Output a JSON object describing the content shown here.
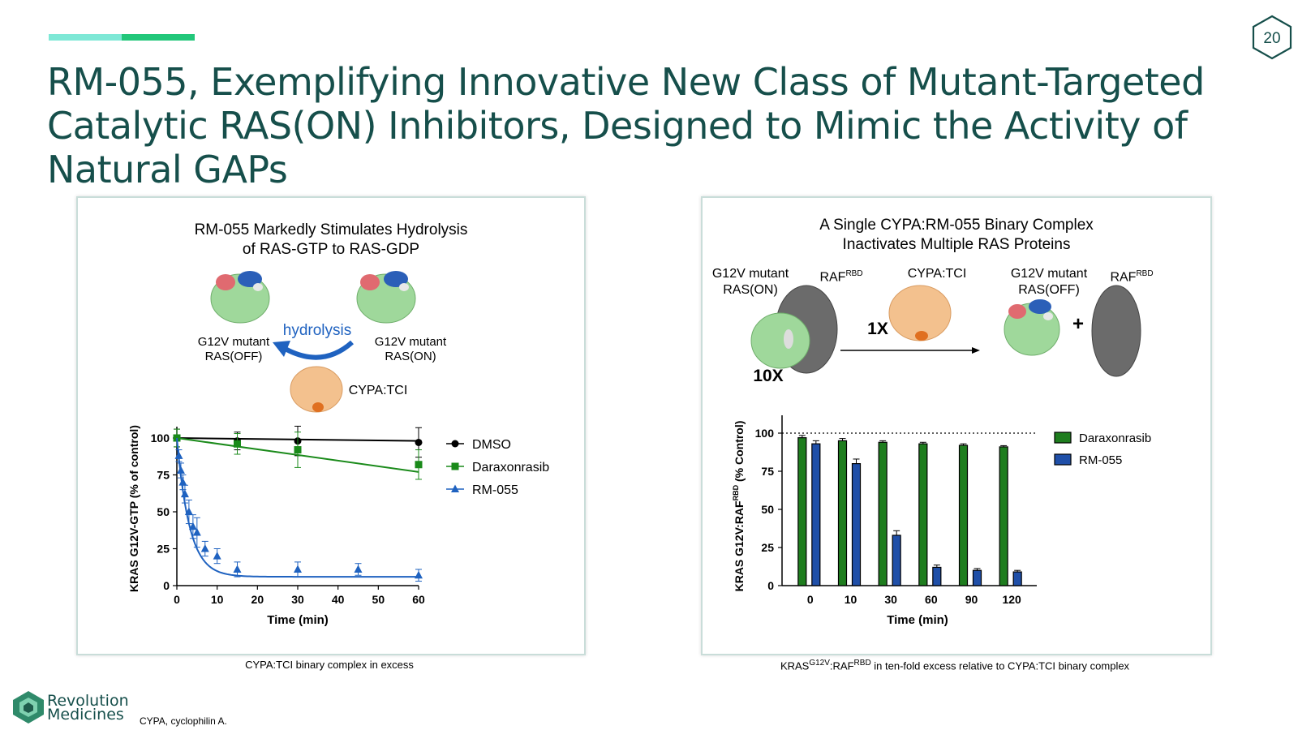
{
  "page_number": "20",
  "title": "RM-055, Exemplifying Innovative New Class of Mutant-Targeted Catalytic RAS(ON) Inhibitors, Designed to Mimic the Activity of Natural GAPs",
  "colors": {
    "title": "#164f4b",
    "accent_light": "#7ee8d6",
    "accent_dark": "#22c77a",
    "dmso": "#000000",
    "daraxonrasib": "#1a8a1a",
    "rm055": "#1f62c0",
    "bar_green": "#1e7d1e",
    "bar_blue": "#1f4fa8"
  },
  "left_panel": {
    "title_line1": "RM-055 Markedly Stimulates Hydrolysis",
    "title_line2": "of RAS-GTP to RAS-GDP",
    "label_off_1": "G12V mutant",
    "label_off_2": "RAS(OFF)",
    "label_on_1": "G12V mutant",
    "label_on_2": "RAS(ON)",
    "arrow_label": "hydrolysis",
    "cypa_label": "CYPA:TCI",
    "caption": "CYPA:TCI binary complex in excess"
  },
  "right_panel": {
    "title_line1": "A Single CYPA:RM-055 Binary Complex",
    "title_line2": "Inactivates Multiple RAS Proteins",
    "label_on_1": "G12V mutant",
    "label_on_2": "RAS(ON)",
    "raf_label": "RAF",
    "raf_sup": "RBD",
    "cypa_label": "CYPA:TCI",
    "label_off_1": "G12V mutant",
    "label_off_2": "RAS(OFF)",
    "raf_label_2": "RAF",
    "raf_sup_2": "RBD",
    "ratio_1x": "1X",
    "ratio_10x": "10X",
    "plus": "+",
    "caption_pre": "KRAS",
    "caption_sup1": "G12V",
    "caption_mid": ":RAF",
    "caption_sup2": "RBD",
    "caption_post": " in ten-fold excess relative to CYPA:TCI binary complex"
  },
  "logo_line1": "Revolution",
  "logo_line2": "Medicines",
  "footnote": "CYPA, cyclophilin A.",
  "chart_data": [
    {
      "type": "line",
      "xlabel": "Time (min)",
      "ylabel": "KRAS G12V-GTP (% of control)",
      "xlim": [
        0,
        60
      ],
      "ylim": [
        0,
        100
      ],
      "xticks": [
        0,
        10,
        20,
        30,
        40,
        50,
        60
      ],
      "yticks": [
        0,
        25,
        50,
        75,
        100
      ],
      "legend_position": "right",
      "series": [
        {
          "name": "DMSO",
          "marker": "circle",
          "points": [
            {
              "x": 0,
              "y": 100,
              "err": 6
            },
            {
              "x": 15,
              "y": 98,
              "err": 6
            },
            {
              "x": 30,
              "y": 98,
              "err": 10
            },
            {
              "x": 60,
              "y": 97,
              "err": 10
            }
          ],
          "fit": [
            [
              0,
              100
            ],
            [
              60,
              98
            ]
          ]
        },
        {
          "name": "Daraxonrasib",
          "marker": "square",
          "points": [
            {
              "x": 0,
              "y": 100,
              "err": 6
            },
            {
              "x": 15,
              "y": 96,
              "err": 7
            },
            {
              "x": 30,
              "y": 92,
              "err": 12
            },
            {
              "x": 60,
              "y": 82,
              "err": 10
            }
          ],
          "fit": [
            [
              0,
              100
            ],
            [
              60,
              77
            ]
          ]
        },
        {
          "name": "RM-055",
          "marker": "triangle",
          "points": [
            {
              "x": 0.5,
              "y": 88,
              "err": 4
            },
            {
              "x": 1,
              "y": 78,
              "err": 5
            },
            {
              "x": 1.5,
              "y": 70,
              "err": 5
            },
            {
              "x": 2,
              "y": 62,
              "err": 6
            },
            {
              "x": 3,
              "y": 50,
              "err": 8
            },
            {
              "x": 4,
              "y": 40,
              "err": 8
            },
            {
              "x": 5,
              "y": 36,
              "err": 10
            },
            {
              "x": 7,
              "y": 25,
              "err": 5
            },
            {
              "x": 10,
              "y": 20,
              "err": 5
            },
            {
              "x": 15,
              "y": 11,
              "err": 5
            },
            {
              "x": 30,
              "y": 11,
              "err": 5
            },
            {
              "x": 45,
              "y": 11,
              "err": 4
            },
            {
              "x": 60,
              "y": 7,
              "err": 4
            }
          ],
          "fit_model": {
            "plateau": 6,
            "span": 94,
            "k": 0.32
          }
        }
      ]
    },
    {
      "type": "bar",
      "xlabel": "Time (min)",
      "ylabel_main": "KRAS G12V:RAF",
      "ylabel_sup": "RBD",
      "ylabel_tail": " (% Control)",
      "ylim": [
        0,
        100
      ],
      "yticks": [
        0,
        25,
        50,
        75,
        100
      ],
      "categories": [
        "0",
        "10",
        "30",
        "60",
        "90",
        "120"
      ],
      "reference_line": 100,
      "legend_position": "top-right",
      "series": [
        {
          "name": "Daraxonrasib",
          "values": [
            97,
            95,
            94,
            93,
            92,
            91
          ],
          "errors": [
            1.5,
            1.5,
            1,
            1,
            1,
            0.8
          ]
        },
        {
          "name": "RM-055",
          "values": [
            93,
            80,
            33,
            12,
            10,
            9
          ],
          "errors": [
            2,
            3,
            3,
            1.5,
            1.2,
            1
          ]
        }
      ]
    }
  ]
}
